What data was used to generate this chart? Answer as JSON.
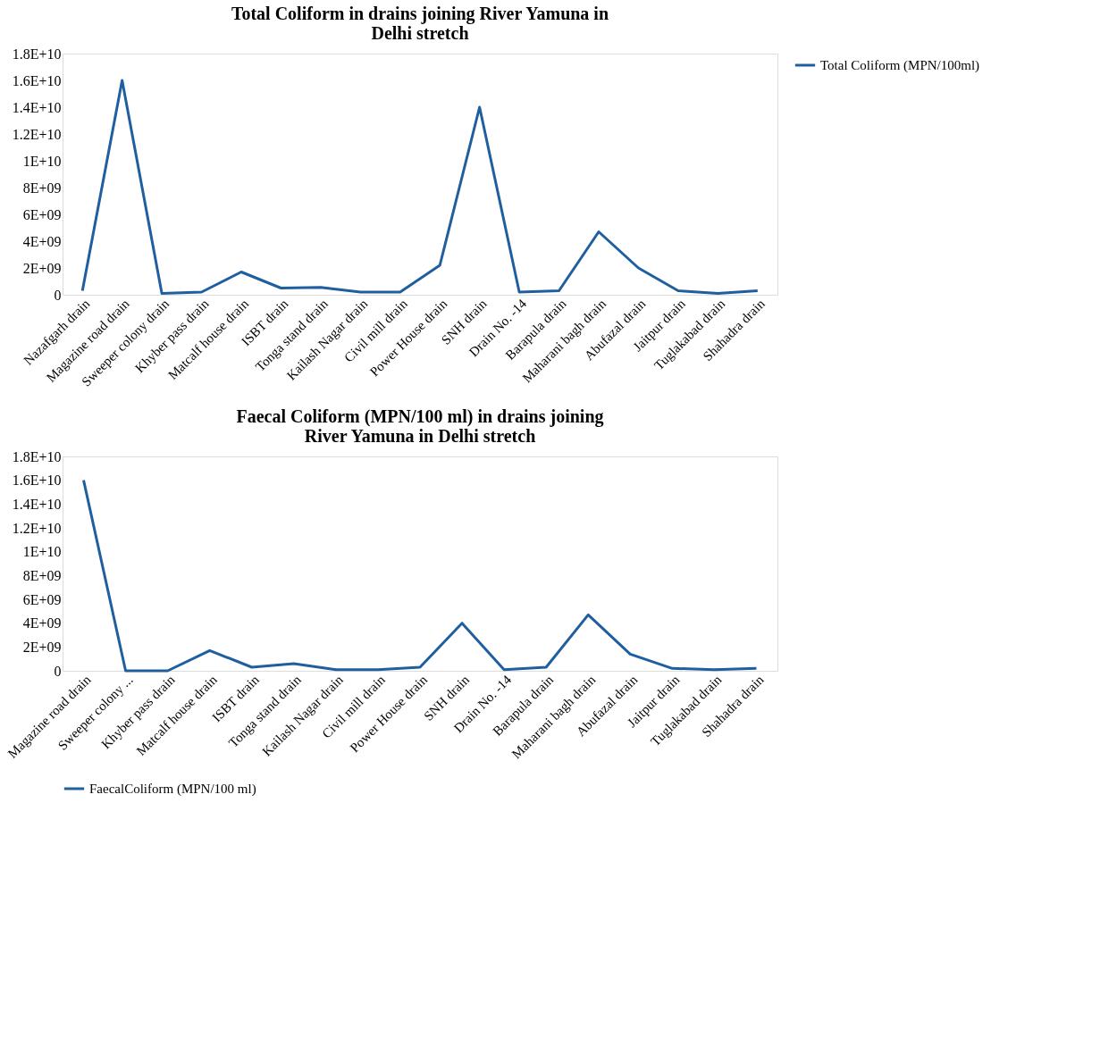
{
  "chart_data": [
    {
      "type": "line",
      "title": "Total Coliform in drains joining River Yamuna in Delhi stretch",
      "categories": [
        "Nazafgarh drain",
        "Magazine road drain",
        "Sweeper colony drain",
        "Khyber pass drain",
        "Matcalf house drain",
        "ISBT drain",
        "Tonga stand drain",
        "Kailash Nagar drain",
        "Civil mill drain",
        "Power House drain",
        "SNH drain",
        "Drain No. -14",
        "Barapula drain",
        "Maharani bagh drain",
        "Abufazal drain",
        "Jaitpur drain",
        "Tuglakabad drain",
        "Shahadra drain"
      ],
      "series": [
        {
          "name": "Total Coliform (MPN/100ml)",
          "color": "#1f5fa0",
          "values": [
            300000000,
            16000000000,
            100000000,
            200000000,
            1700000000,
            500000000,
            550000000,
            200000000,
            200000000,
            2200000000,
            14000000000,
            200000000,
            300000000,
            4700000000,
            2000000000,
            300000000,
            100000000,
            300000000
          ]
        }
      ],
      "ylim": [
        0,
        18000000000
      ],
      "yticks": [
        0,
        {
          "value": 2000000000,
          "label": "2E+09"
        },
        {
          "value": 4000000000,
          "label": "4E+09"
        },
        {
          "value": 6000000000,
          "label": "6E+09"
        },
        {
          "value": 8000000000,
          "label": "8E+09"
        },
        {
          "value": 10000000000,
          "label": "1E+10"
        },
        {
          "value": 12000000000,
          "label": "1.2E+10"
        },
        {
          "value": 14000000000,
          "label": "1.4E+10"
        },
        {
          "value": 16000000000,
          "label": "1.6E+10"
        },
        {
          "value": 18000000000,
          "label": "1.8E+10"
        }
      ],
      "legend": "right",
      "grid": false
    },
    {
      "type": "line",
      "title": "Faecal Coliform (MPN/100 ml) in drains joining River Yamuna in Delhi stretch",
      "categories": [
        "Magazine road drain",
        "Sweeper colony ...",
        "Khyber pass drain",
        "Matcalf house drain",
        "ISBT drain",
        "Tonga stand drain",
        "Kailash Nagar drain",
        "Civil mill drain",
        "Power House drain",
        "SNH drain",
        "Drain No. -14",
        "Barapula drain",
        "Maharani bagh drain",
        "Abufazal drain",
        "Jaitpur drain",
        "Tuglakabad drain",
        "Shahadra drain"
      ],
      "series": [
        {
          "name": "FaecalColiform (MPN/100 ml)",
          "color": "#1f5fa0",
          "values": [
            16000000000,
            0,
            0,
            1700000000,
            300000000,
            600000000,
            100000000,
            100000000,
            300000000,
            4000000000,
            100000000,
            300000000,
            4700000000,
            1400000000,
            200000000,
            100000000,
            200000000
          ]
        }
      ],
      "ylim": [
        0,
        18000000000
      ],
      "yticks": [
        0,
        {
          "value": 2000000000,
          "label": "2E+09"
        },
        {
          "value": 4000000000,
          "label": "4E+09"
        },
        {
          "value": 6000000000,
          "label": "6E+09"
        },
        {
          "value": 8000000000,
          "label": "8E+09"
        },
        {
          "value": 10000000000,
          "label": "1E+10"
        },
        {
          "value": 12000000000,
          "label": "1.2E+10"
        },
        {
          "value": 14000000000,
          "label": "1.4E+10"
        },
        {
          "value": 16000000000,
          "label": "1.6E+10"
        },
        {
          "value": 18000000000,
          "label": "1.8E+10"
        }
      ],
      "legend": "bottom",
      "grid": false
    }
  ]
}
